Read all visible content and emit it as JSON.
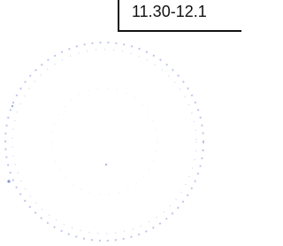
{
  "time_box": {
    "text": "11.30-12.1"
  }
}
